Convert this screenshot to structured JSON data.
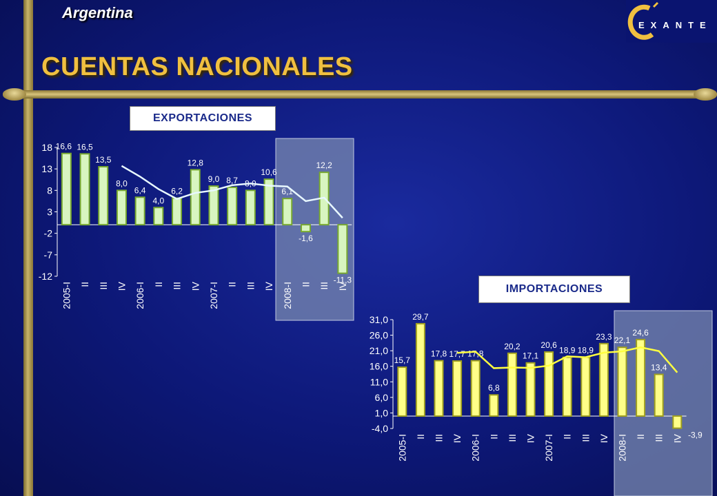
{
  "header": {
    "country": "Argentina",
    "title": "CUENTAS NACIONALES",
    "logo_text": "EXANTE"
  },
  "charts": {
    "exportaciones_label": "EXPORTACIONES",
    "importaciones_label": "IMPORTACIONES"
  },
  "colors": {
    "background": "#0d1878",
    "accent_gold": "#f0c040",
    "export_bar": "#d8f5c0",
    "export_bar_border": "#78a830",
    "export_line": "#e8f8ff",
    "import_bar": "#ffff88",
    "import_bar_border": "#a0a020",
    "import_line": "#ffff40",
    "highlight_box": "#7a8ab0"
  },
  "chart_data": [
    {
      "type": "bar",
      "id": "exportaciones",
      "title": "EXPORTACIONES",
      "categories": [
        "2005-I",
        "II",
        "III",
        "IV",
        "2006-I",
        "II",
        "III",
        "IV",
        "2007-I",
        "II",
        "III",
        "IV",
        "2008-I",
        "II",
        "III",
        "IV"
      ],
      "values": [
        16.6,
        16.5,
        13.5,
        8.0,
        6.4,
        4.0,
        6.2,
        12.8,
        9.0,
        8.7,
        8.0,
        10.6,
        6.1,
        -1.6,
        12.2,
        -11.3
      ],
      "value_labels": [
        "16,6",
        "16,5",
        "13,5",
        "8,0",
        "6,4",
        "4,0",
        "6,2",
        "12,8",
        "9,0",
        "8,7",
        "8,0",
        "10,6",
        "6,1",
        "-1,6",
        "12,2",
        "-11,3"
      ],
      "trend_line": [
        null,
        null,
        null,
        13.7,
        11.2,
        8.3,
        6.0,
        7.4,
        8.0,
        9.2,
        9.6,
        9.1,
        8.9,
        5.5,
        6.3,
        1.6
      ],
      "yticks": [
        "18",
        "13",
        "8",
        "3",
        "-2",
        "-7",
        "-12"
      ],
      "ylim": [
        -12,
        18
      ],
      "highlight": "2008-I to IV"
    },
    {
      "type": "bar",
      "id": "importaciones",
      "title": "IMPORTACIONES",
      "categories": [
        "2005-I",
        "II",
        "III",
        "IV",
        "2006-I",
        "II",
        "III",
        "IV",
        "2007-I",
        "II",
        "III",
        "IV",
        "2008-I",
        "II",
        "III",
        "IV"
      ],
      "values": [
        15.7,
        29.7,
        17.8,
        17.7,
        17.8,
        6.8,
        20.2,
        17.1,
        20.6,
        18.9,
        18.9,
        23.3,
        22.1,
        24.6,
        13.4,
        -3.9
      ],
      "value_labels": [
        "15,7",
        "29,7",
        "17,8",
        "17,7",
        "17,8",
        "6,8",
        "20,2",
        "17,1",
        "20,6",
        "18,9",
        "18,9",
        "23,3",
        "22,1",
        "24,6",
        "13,4",
        "-3,9"
      ],
      "trend_line": [
        null,
        null,
        null,
        20.3,
        20.7,
        15.4,
        15.6,
        15.5,
        16.2,
        19.2,
        18.9,
        20.4,
        20.8,
        22.1,
        20.9,
        14.0
      ],
      "yticks": [
        "31,0",
        "26,0",
        "21,0",
        "16,0",
        "11,0",
        "6,0",
        "1,0",
        "-4,0"
      ],
      "ylim": [
        -4,
        31
      ],
      "highlight": "2008-I to IV"
    }
  ]
}
